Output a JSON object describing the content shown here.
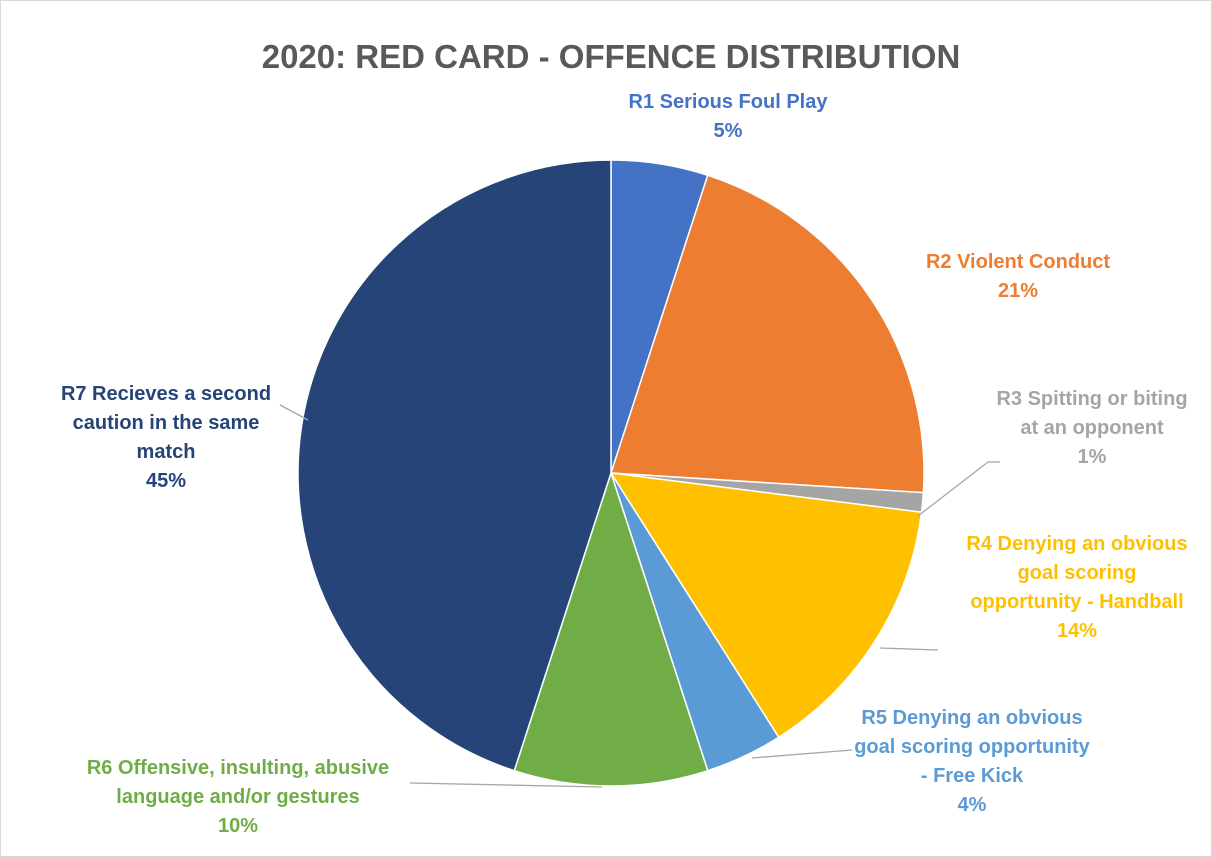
{
  "chart_data": {
    "type": "pie",
    "title": "2020: RED CARD - OFFENCE DISTRIBUTION",
    "slices": [
      {
        "label_lines": [
          "R1 Serious Foul Play"
        ],
        "percent_label": "5%",
        "value": 5,
        "color": "#4472C4"
      },
      {
        "label_lines": [
          "R2 Violent Conduct"
        ],
        "percent_label": "21%",
        "value": 21,
        "color": "#ED7D31"
      },
      {
        "label_lines": [
          "R3 Spitting or biting",
          "at an opponent"
        ],
        "percent_label": "1%",
        "value": 1,
        "color": "#A5A5A5"
      },
      {
        "label_lines": [
          "R4 Denying an obvious",
          "goal scoring",
          "opportunity - Handball"
        ],
        "percent_label": "14%",
        "value": 14,
        "color": "#FFC000"
      },
      {
        "label_lines": [
          "R5 Denying an obvious",
          "goal scoring opportunity",
          "- Free Kick"
        ],
        "percent_label": "4%",
        "value": 4,
        "color": "#5B9BD5"
      },
      {
        "label_lines": [
          "R6 Offensive, insulting, abusive",
          "language and/or gestures"
        ],
        "percent_label": "10%",
        "value": 10,
        "color": "#70AD47"
      },
      {
        "label_lines": [
          "R7 Recieves a second",
          "caution in the same",
          "match"
        ],
        "percent_label": "45%",
        "value": 45,
        "color": "#264478"
      }
    ],
    "legend": "none",
    "start_angle": "12 o'clock, clockwise"
  }
}
